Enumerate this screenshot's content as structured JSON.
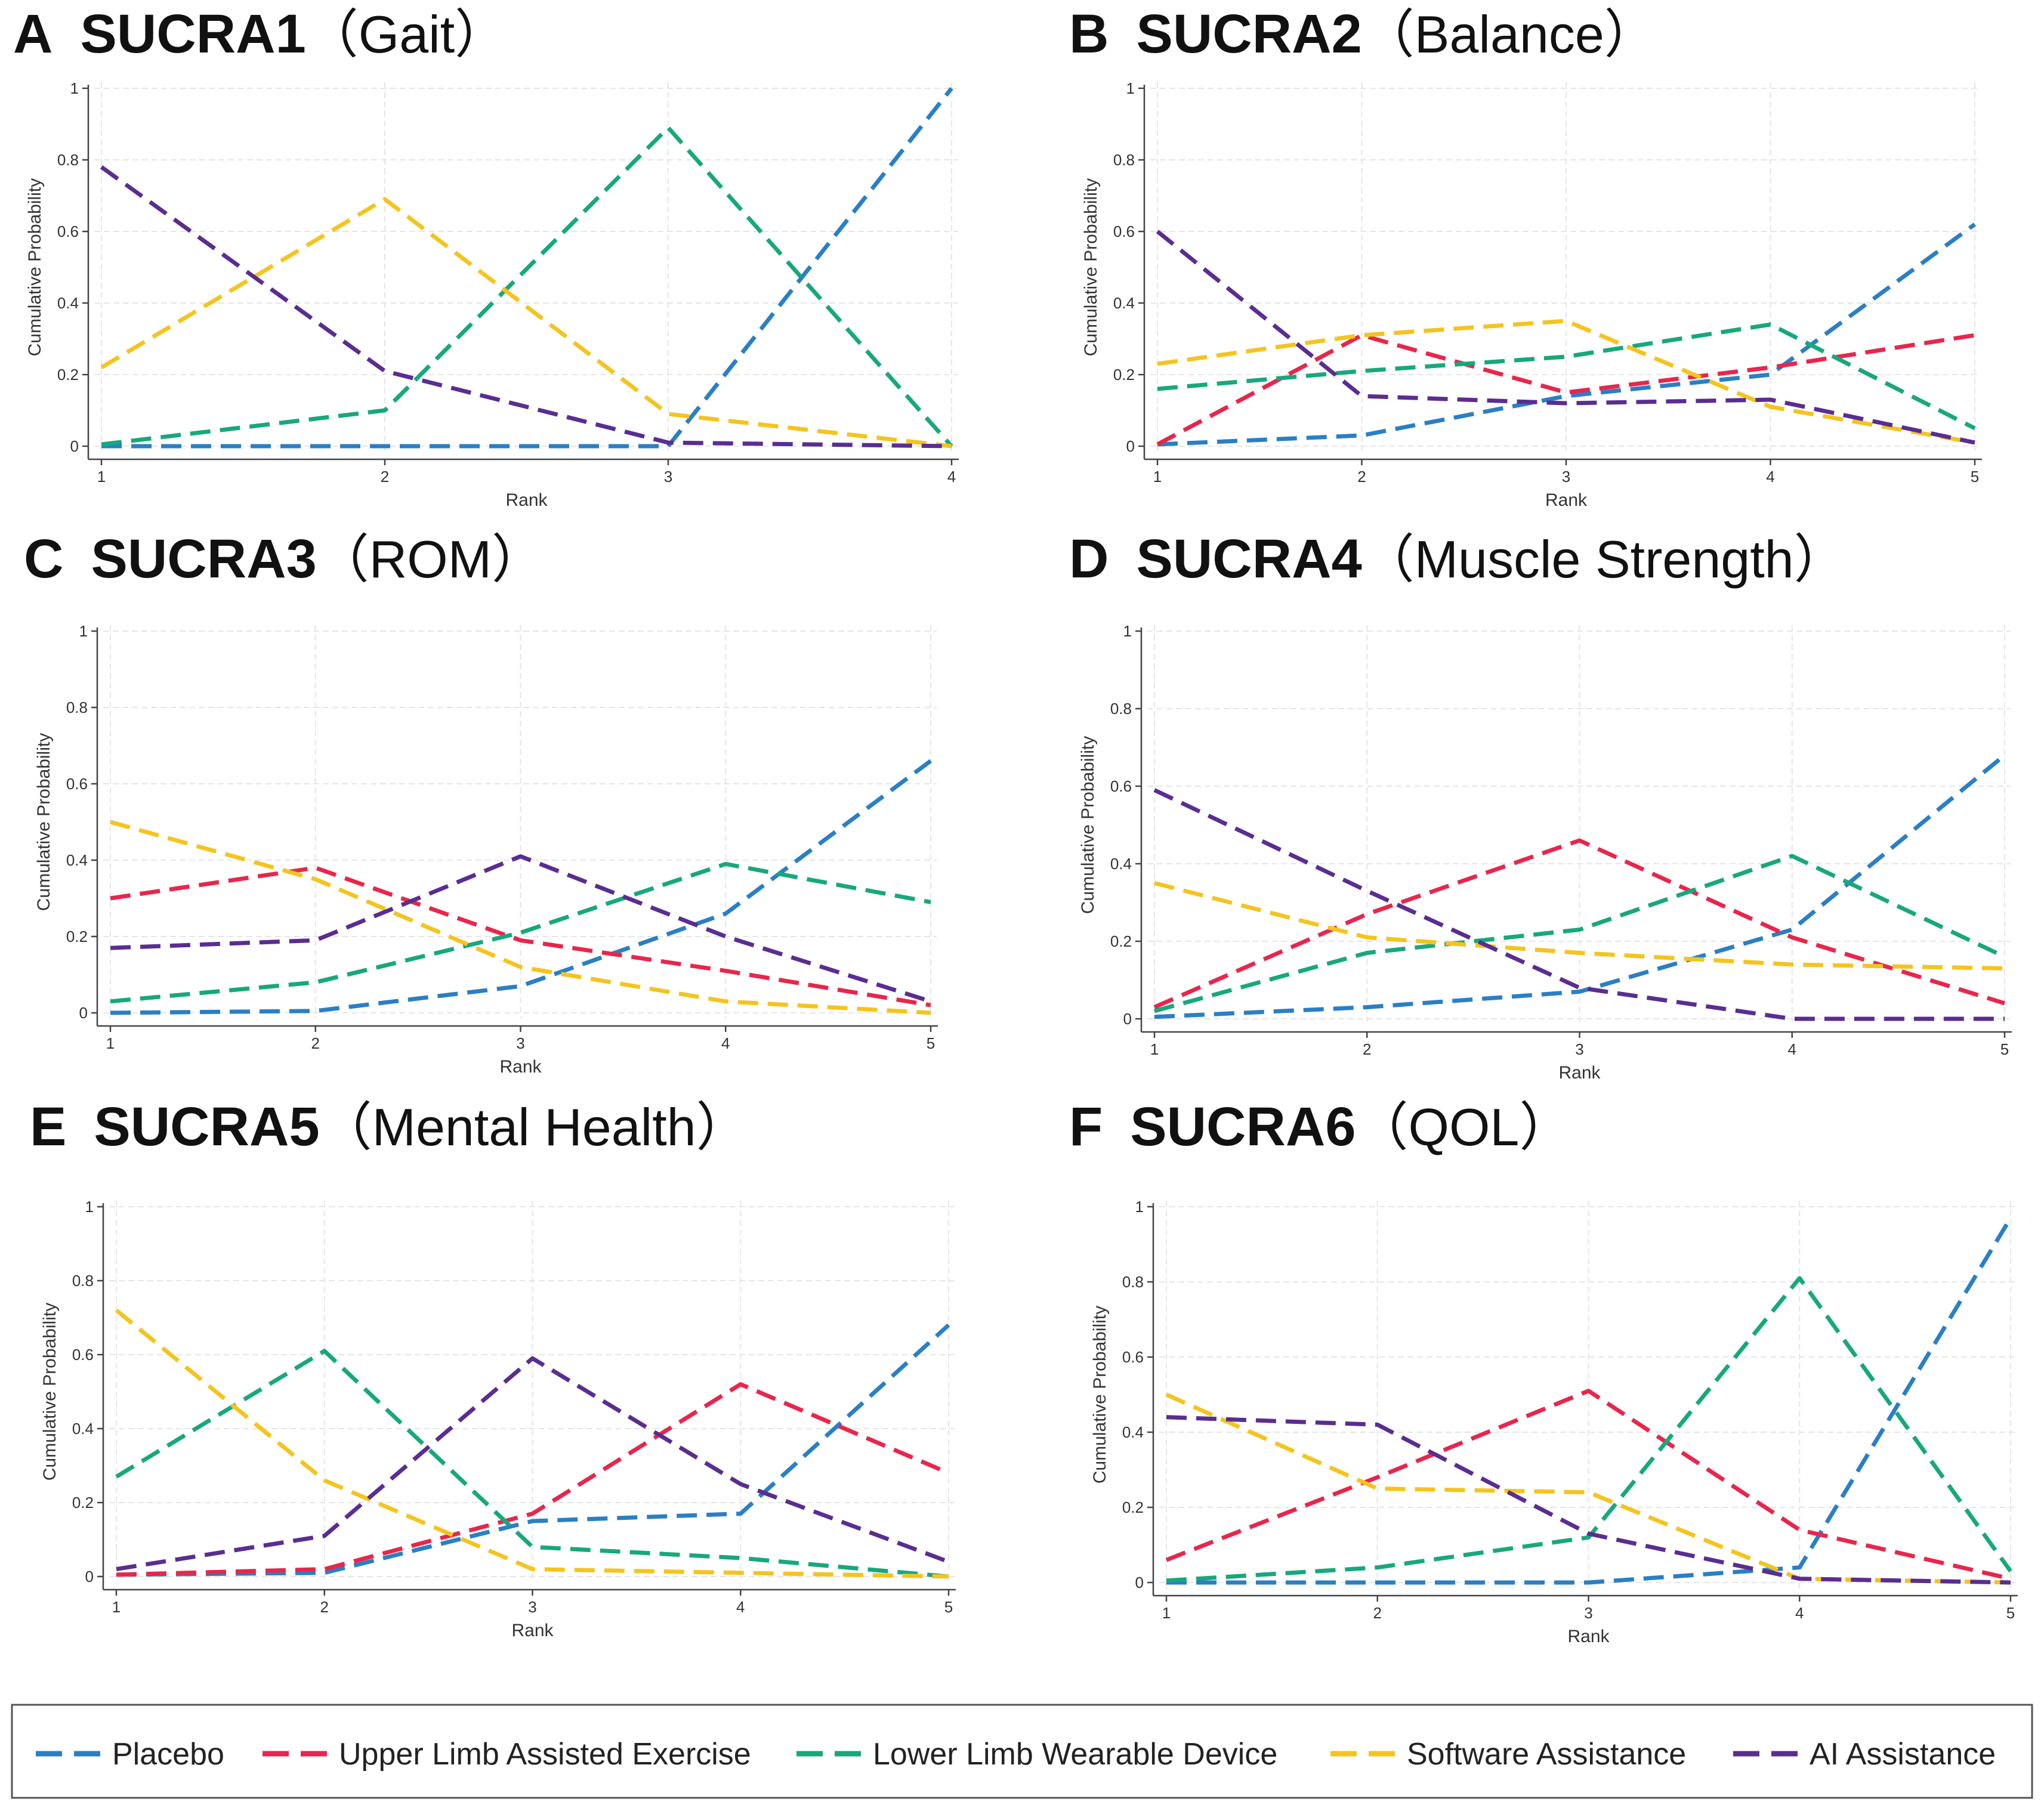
{
  "series_names": [
    "Placebo",
    "Upper Limb Assisted Exercise",
    "Lower Limb Wearable Device",
    "Software Assistance",
    "AI Assistance"
  ],
  "series_colors": [
    "#2a7fc5",
    "#e8264c",
    "#17a87c",
    "#f4c41f",
    "#5a2d91"
  ],
  "chart_data": [
    {
      "type": "line",
      "letter": "A",
      "title": "SUCRA1",
      "subtitle": "（Gait）",
      "xlabel": "Rank",
      "ylabel": "Cumulative Probability",
      "x": [
        1,
        2,
        3,
        4
      ],
      "x_ticks": [
        "1",
        "2",
        "3",
        "4"
      ],
      "y_ticks": [
        "0",
        "0.2",
        "0.4",
        "0.6",
        "0.8",
        "1"
      ],
      "ylim": [
        0,
        1
      ],
      "series": [
        {
          "name": "Placebo",
          "values": [
            0.0,
            0.0,
            0.0,
            1.0
          ]
        },
        {
          "name": "Lower Limb Wearable Device",
          "values": [
            0.005,
            0.1,
            0.89,
            0.0
          ]
        },
        {
          "name": "Software Assistance",
          "values": [
            0.22,
            0.69,
            0.09,
            0.0
          ]
        },
        {
          "name": "AI Assistance",
          "values": [
            0.78,
            0.21,
            0.01,
            0.0
          ]
        }
      ]
    },
    {
      "type": "line",
      "letter": "B",
      "title": "SUCRA2",
      "subtitle": "（Balance）",
      "xlabel": "Rank",
      "ylabel": "Cumulative Probability",
      "x": [
        1,
        2,
        3,
        4,
        5
      ],
      "x_ticks": [
        "1",
        "2",
        "3",
        "4",
        "5"
      ],
      "y_ticks": [
        "0",
        "0.2",
        "0.4",
        "0.6",
        "0.8",
        "1"
      ],
      "ylim": [
        0,
        1
      ],
      "series": [
        {
          "name": "Placebo",
          "values": [
            0.005,
            0.03,
            0.14,
            0.2,
            0.62
          ]
        },
        {
          "name": "Upper Limb Assisted Exercise",
          "values": [
            0.005,
            0.31,
            0.15,
            0.22,
            0.31
          ]
        },
        {
          "name": "Lower Limb Wearable Device",
          "values": [
            0.16,
            0.21,
            0.25,
            0.34,
            0.05
          ]
        },
        {
          "name": "Software Assistance",
          "values": [
            0.23,
            0.31,
            0.35,
            0.11,
            0.01
          ]
        },
        {
          "name": "AI Assistance",
          "values": [
            0.6,
            0.14,
            0.12,
            0.13,
            0.01
          ]
        }
      ]
    },
    {
      "type": "line",
      "letter": "C",
      "title": "SUCRA3",
      "subtitle": "（ROM）",
      "xlabel": "Rank",
      "ylabel": "Cumulative Probability",
      "x": [
        1,
        2,
        3,
        4,
        5
      ],
      "x_ticks": [
        "1",
        "2",
        "3",
        "4",
        "5"
      ],
      "y_ticks": [
        "0",
        "0.2",
        "0.4",
        "0.6",
        "0.8",
        "1"
      ],
      "ylim": [
        0,
        1
      ],
      "series": [
        {
          "name": "Placebo",
          "values": [
            0.0,
            0.005,
            0.07,
            0.26,
            0.66
          ]
        },
        {
          "name": "Upper Limb Assisted Exercise",
          "values": [
            0.3,
            0.38,
            0.19,
            0.11,
            0.02
          ]
        },
        {
          "name": "Lower Limb Wearable Device",
          "values": [
            0.03,
            0.08,
            0.21,
            0.39,
            0.29
          ]
        },
        {
          "name": "Software Assistance",
          "values": [
            0.5,
            0.35,
            0.12,
            0.03,
            0.0
          ]
        },
        {
          "name": "AI Assistance",
          "values": [
            0.17,
            0.19,
            0.41,
            0.2,
            0.03
          ]
        }
      ]
    },
    {
      "type": "line",
      "letter": "D",
      "title": "SUCRA4",
      "subtitle": "（Muscle Strength）",
      "xlabel": "Rank",
      "ylabel": "Cumulative Probability",
      "x": [
        1,
        2,
        3,
        4,
        5
      ],
      "x_ticks": [
        "1",
        "2",
        "3",
        "4",
        "5"
      ],
      "y_ticks": [
        "0",
        "0.2",
        "0.4",
        "0.6",
        "0.8",
        "1"
      ],
      "ylim": [
        0,
        1
      ],
      "series": [
        {
          "name": "Placebo",
          "values": [
            0.005,
            0.03,
            0.07,
            0.23,
            0.68
          ]
        },
        {
          "name": "Upper Limb Assisted Exercise",
          "values": [
            0.03,
            0.27,
            0.46,
            0.21,
            0.04
          ]
        },
        {
          "name": "Lower Limb Wearable Device",
          "values": [
            0.02,
            0.17,
            0.23,
            0.42,
            0.16
          ]
        },
        {
          "name": "Software Assistance",
          "values": [
            0.35,
            0.21,
            0.17,
            0.14,
            0.13
          ]
        },
        {
          "name": "AI Assistance",
          "values": [
            0.59,
            0.33,
            0.08,
            0.0,
            0.0
          ]
        }
      ]
    },
    {
      "type": "line",
      "letter": "E",
      "title": "SUCRA5",
      "subtitle": "（Mental Health）",
      "xlabel": "Rank",
      "ylabel": "Cumulative Probability",
      "x": [
        1,
        2,
        3,
        4,
        5
      ],
      "x_ticks": [
        "1",
        "2",
        "3",
        "4",
        "5"
      ],
      "y_ticks": [
        "0",
        "0.2",
        "0.4",
        "0.6",
        "0.8",
        "1"
      ],
      "ylim": [
        0,
        1
      ],
      "series": [
        {
          "name": "Placebo",
          "values": [
            0.005,
            0.01,
            0.15,
            0.17,
            0.68
          ]
        },
        {
          "name": "Upper Limb Assisted Exercise",
          "values": [
            0.005,
            0.02,
            0.17,
            0.52,
            0.28
          ]
        },
        {
          "name": "Lower Limb Wearable Device",
          "values": [
            0.27,
            0.61,
            0.08,
            0.05,
            0.0
          ]
        },
        {
          "name": "Software Assistance",
          "values": [
            0.72,
            0.26,
            0.02,
            0.01,
            0.0
          ]
        },
        {
          "name": "AI Assistance",
          "values": [
            0.02,
            0.11,
            0.59,
            0.25,
            0.04
          ]
        }
      ]
    },
    {
      "type": "line",
      "letter": "F",
      "title": "SUCRA6",
      "subtitle": "（QOL）",
      "xlabel": "Rank",
      "ylabel": "Cumulative Probability",
      "x": [
        1,
        2,
        3,
        4,
        5
      ],
      "x_ticks": [
        "1",
        "2",
        "3",
        "4",
        "5"
      ],
      "y_ticks": [
        "0",
        "0.2",
        "0.4",
        "0.6",
        "0.8",
        "1"
      ],
      "ylim": [
        0,
        1
      ],
      "series": [
        {
          "name": "Placebo",
          "values": [
            0.0,
            0.0,
            0.0,
            0.04,
            0.97
          ]
        },
        {
          "name": "Upper Limb Assisted Exercise",
          "values": [
            0.06,
            0.28,
            0.51,
            0.14,
            0.01
          ]
        },
        {
          "name": "Lower Limb Wearable Device",
          "values": [
            0.005,
            0.04,
            0.12,
            0.81,
            0.03
          ]
        },
        {
          "name": "Software Assistance",
          "values": [
            0.5,
            0.25,
            0.24,
            0.01,
            0.0
          ]
        },
        {
          "name": "AI Assistance",
          "values": [
            0.44,
            0.42,
            0.13,
            0.01,
            0.0
          ]
        }
      ]
    }
  ]
}
